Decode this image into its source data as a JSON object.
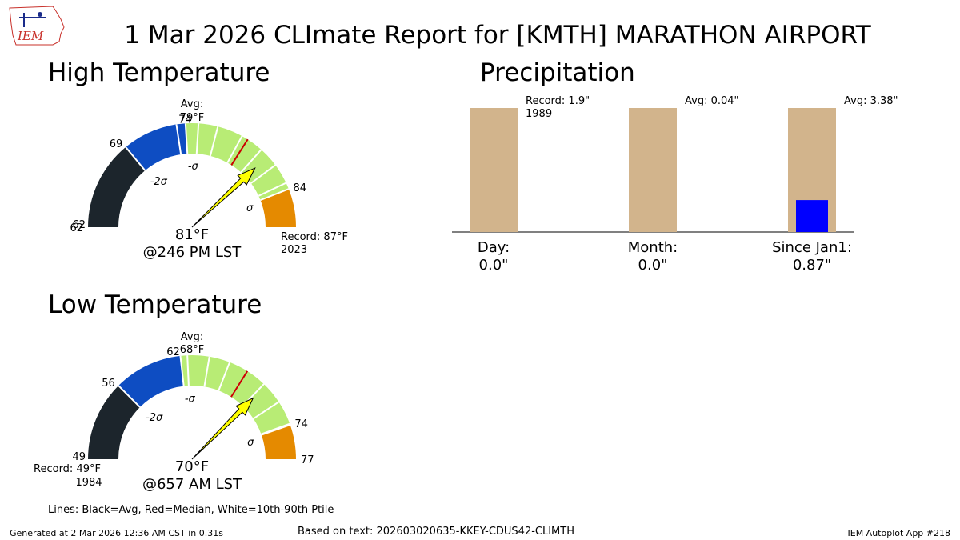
{
  "header": {
    "title": "1 Mar 2026 CLImate Report for [KMTH] MARATHON AIRPORT",
    "logo_text": "IEM"
  },
  "high_gauge": {
    "section_title": "High Temperature",
    "min": 62,
    "max": 87,
    "tick_labels": [
      "62",
      "69",
      "74",
      "84"
    ],
    "tick_values": [
      62,
      69,
      74,
      84
    ],
    "sigma_labels": [
      "-2σ",
      "-σ",
      "σ"
    ],
    "sigma_values": [
      69,
      74,
      84
    ],
    "avg_label": "Avg:",
    "avg_value_label": "79°F",
    "avg_value": 79,
    "median_value": 79,
    "value": 81,
    "value_label": "81°F",
    "time_label": "@246 PM LST",
    "record_label": "Record: 87°F",
    "record_year": "2023",
    "percentile_values": [
      73.3,
      75,
      76.5,
      78.5,
      80.3,
      81.9,
      83.5
    ],
    "colors": {
      "below2": "#1c252c",
      "below1": "#0e4dc2",
      "normal": "#b8ec75",
      "above": "#e58a00",
      "median": "#cc0000",
      "needle": "#ffff00"
    }
  },
  "low_gauge": {
    "section_title": "Low Temperature",
    "min": 49,
    "max": 77,
    "tick_labels": [
      "56",
      "62",
      "74",
      "77"
    ],
    "tick_values": [
      56,
      62,
      74,
      77
    ],
    "sigma_labels": [
      "-2σ",
      "-σ",
      "σ"
    ],
    "sigma_values": [
      56,
      62,
      74
    ],
    "avg_label": "Avg:",
    "avg_value_label": "68°F",
    "avg_value": 68,
    "median_value": 68,
    "value": 70,
    "value_label": "70°F",
    "time_label": "@657 AM LST",
    "record_label": "Record: 49°F",
    "record_year": "1984",
    "percentile_values": [
      62.6,
      64.5,
      66.3,
      68,
      69.8,
      71.8,
      73.9
    ],
    "colors": {
      "below2": "#1c252c",
      "below1": "#0e4dc2",
      "normal": "#b8ec75",
      "above": "#e58a00",
      "median": "#cc0000",
      "needle": "#ffff00"
    }
  },
  "chart_data": {
    "type": "bar",
    "title": "Precipitation",
    "categories": [
      "Day:",
      "Month:",
      "Since Jan1:"
    ],
    "observed_labels": [
      "0.0\"",
      "0.0\"",
      "0.87\""
    ],
    "series": [
      {
        "name": "",
        "values": [
          1.9,
          0.04,
          3.38
        ],
        "color": "#d2b48c"
      },
      {
        "name": "",
        "values": [
          0.0,
          0.0,
          0.87
        ],
        "color": "#0000ff"
      }
    ],
    "annotations": [
      "Record: 1.9\"\n1989",
      "Avg: 0.04\"",
      "Avg: 3.38\""
    ]
  },
  "legend_note": "Lines: Black=Avg, Red=Median, White=10th-90th Ptile",
  "footer": {
    "generated": "Generated at 2 Mar 2026 12:36 AM CST in 0.31s",
    "based_on": "Based on text: 202603020635-KKEY-CDUS42-CLIMTH",
    "app": "IEM Autoplot App #218"
  }
}
